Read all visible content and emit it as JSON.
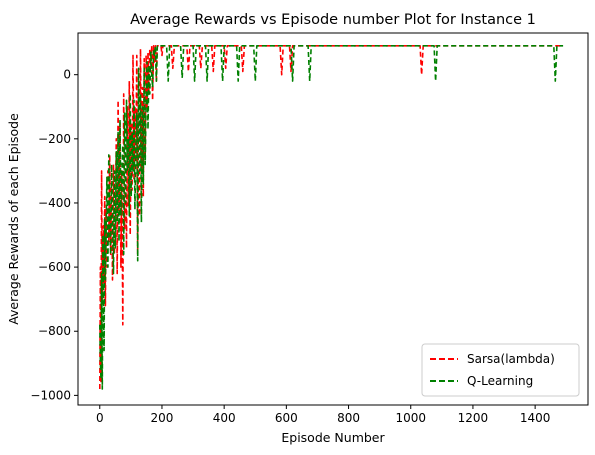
{
  "chart_data": {
    "type": "line",
    "title": "Average Rewards vs Episode number Plot for Instance 1",
    "xlabel": "Episode Number",
    "ylabel": "Average Rewards of each Episode",
    "xlim": [
      -70,
      1570
    ],
    "ylim": [
      -1030,
      130
    ],
    "xticks": [
      0,
      200,
      400,
      600,
      800,
      1000,
      1200,
      1400
    ],
    "xtick_labels": [
      "0",
      "200",
      "400",
      "600",
      "800",
      "1000",
      "1200",
      "1400"
    ],
    "yticks": [
      0,
      -200,
      -400,
      -600,
      -800,
      -1000
    ],
    "ytick_labels": [
      "0",
      "−200",
      "−400",
      "−600",
      "−800",
      "−1000"
    ],
    "grid": false,
    "legend_position": "lower-right",
    "series": [
      {
        "name": "Sarsa(lambda)",
        "color": "#ff0000",
        "linestyle": "dashed",
        "x": [
          0,
          2,
          4,
          6,
          8,
          10,
          12,
          14,
          16,
          18,
          20,
          23,
          26,
          29,
          32,
          35,
          38,
          41,
          44,
          47,
          50,
          53,
          56,
          59,
          62,
          65,
          68,
          71,
          74,
          77,
          80,
          83,
          86,
          89,
          92,
          95,
          98,
          101,
          104,
          107,
          110,
          113,
          116,
          119,
          122,
          125,
          128,
          131,
          134,
          137,
          140,
          143,
          146,
          149,
          152,
          155,
          158,
          161,
          164,
          167,
          170,
          173,
          176,
          179,
          182,
          185,
          188,
          191,
          194,
          197,
          200,
          203,
          206,
          210,
          230,
          235,
          240,
          250,
          280,
          285,
          290,
          320,
          325,
          330,
          360,
          365,
          370,
          400,
          405,
          410,
          455,
          460,
          465,
          580,
          585,
          590,
          610,
          615,
          620,
          1030,
          1035,
          1040,
          1490
        ],
        "y": [
          -980,
          -600,
          -960,
          -300,
          -700,
          -550,
          -470,
          -650,
          -380,
          -720,
          -420,
          -600,
          -300,
          -520,
          -250,
          -560,
          -340,
          -640,
          -280,
          -560,
          -420,
          -200,
          -620,
          -80,
          -430,
          -150,
          -600,
          -300,
          -780,
          -60,
          -480,
          -200,
          -540,
          -100,
          -410,
          -20,
          -500,
          -150,
          -360,
          60,
          -330,
          -100,
          -260,
          60,
          -560,
          -30,
          -440,
          80,
          -300,
          -40,
          -380,
          50,
          -250,
          60,
          -100,
          70,
          -60,
          80,
          20,
          90,
          -80,
          90,
          40,
          90,
          -20,
          90,
          90,
          90,
          90,
          90,
          60,
          90,
          90,
          90,
          90,
          20,
          90,
          90,
          90,
          10,
          90,
          90,
          20,
          90,
          90,
          10,
          90,
          90,
          20,
          90,
          90,
          10,
          90,
          90,
          0,
          90,
          90,
          10,
          90,
          90,
          0,
          90,
          90
        ]
      },
      {
        "name": "Q-Learning",
        "color": "#008000",
        "linestyle": "dashed",
        "x": [
          0,
          2,
          4,
          6,
          8,
          10,
          12,
          14,
          16,
          18,
          20,
          23,
          26,
          29,
          32,
          35,
          38,
          41,
          44,
          47,
          50,
          53,
          56,
          59,
          62,
          65,
          68,
          71,
          74,
          77,
          80,
          83,
          86,
          89,
          92,
          95,
          98,
          101,
          104,
          107,
          110,
          113,
          116,
          119,
          122,
          125,
          128,
          131,
          134,
          137,
          140,
          143,
          146,
          149,
          152,
          155,
          158,
          161,
          164,
          167,
          170,
          173,
          176,
          179,
          182,
          185,
          188,
          191,
          194,
          197,
          200,
          215,
          220,
          225,
          260,
          265,
          270,
          300,
          305,
          310,
          340,
          345,
          350,
          390,
          395,
          400,
          440,
          445,
          450,
          495,
          500,
          505,
          615,
          620,
          625,
          670,
          675,
          680,
          1075,
          1080,
          1085,
          1460,
          1465,
          1470,
          1490
        ],
        "y": [
          -780,
          -900,
          -950,
          -620,
          -980,
          -500,
          -700,
          -860,
          -450,
          -640,
          -520,
          -320,
          -600,
          -250,
          -480,
          -560,
          -280,
          -440,
          -620,
          -300,
          -540,
          -240,
          -460,
          -180,
          -520,
          -140,
          -440,
          -300,
          -220,
          -560,
          -120,
          -400,
          -80,
          -300,
          -200,
          -440,
          -60,
          -380,
          -180,
          -300,
          -80,
          -420,
          -250,
          -120,
          -580,
          20,
          -300,
          -60,
          -460,
          -100,
          -340,
          20,
          -280,
          -90,
          40,
          -170,
          30,
          -60,
          70,
          0,
          -40,
          80,
          60,
          90,
          -20,
          90,
          90,
          90,
          90,
          90,
          90,
          90,
          -20,
          90,
          90,
          -10,
          90,
          90,
          -20,
          90,
          90,
          -20,
          90,
          90,
          -20,
          90,
          90,
          -20,
          90,
          90,
          -20,
          90,
          90,
          -20,
          90,
          90,
          -20,
          90,
          90,
          -20,
          90,
          90,
          -20,
          90,
          90
        ]
      }
    ]
  }
}
